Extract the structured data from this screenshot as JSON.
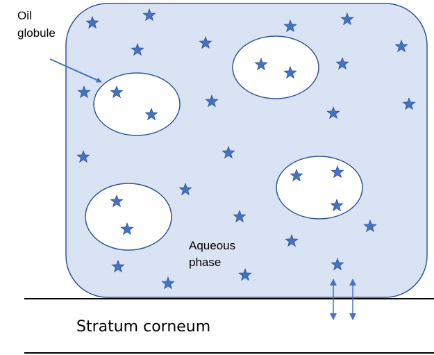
{
  "labels": {
    "oil_globule": [
      "Oil",
      "globule"
    ],
    "aqueous_phase": [
      "Aqueous",
      "phase"
    ],
    "stratum_corneum": "Stratum corneum"
  }
}
